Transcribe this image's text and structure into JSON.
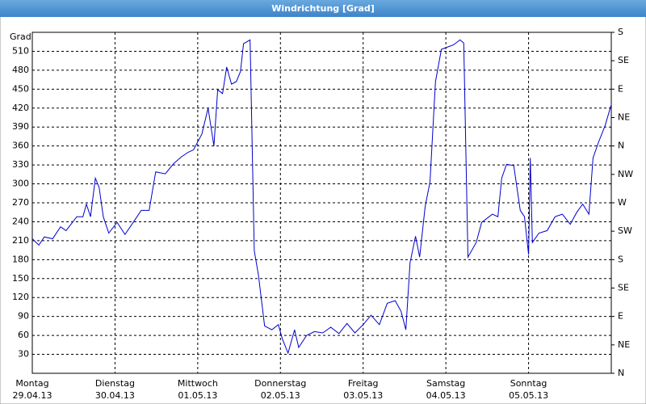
{
  "chart_data": {
    "type": "line",
    "title": "Windrichtung [Grad]",
    "y_label": "Grad",
    "xlim": [
      0,
      168
    ],
    "days": [
      {
        "name": "Montag",
        "date": "29.04.13",
        "value": 0
      },
      {
        "name": "Dienstag",
        "date": "30.04.13",
        "value": 24
      },
      {
        "name": "Mittwoch",
        "date": "01.05.13",
        "value": 48
      },
      {
        "name": "Donnerstag",
        "date": "02.05.13",
        "value": 72
      },
      {
        "name": "Freitag",
        "date": "03.05.13",
        "value": 96
      },
      {
        "name": "Samstag",
        "date": "04.05.13",
        "value": 120
      },
      {
        "name": "Sonntag",
        "date": "05.05.13",
        "value": 144
      }
    ],
    "ylim": [
      0,
      540
    ],
    "yticks": [
      30,
      60,
      90,
      120,
      150,
      180,
      210,
      240,
      270,
      300,
      330,
      360,
      390,
      420,
      450,
      480,
      510
    ],
    "y2ticks": [
      {
        "value": 0,
        "label": "N"
      },
      {
        "value": 45,
        "label": "NE"
      },
      {
        "value": 90,
        "label": "E"
      },
      {
        "value": 135,
        "label": "SE"
      },
      {
        "value": 180,
        "label": "S"
      },
      {
        "value": 225,
        "label": "SW"
      },
      {
        "value": 270,
        "label": "W"
      },
      {
        "value": 315,
        "label": "NW"
      },
      {
        "value": 360,
        "label": "N"
      },
      {
        "value": 405,
        "label": "NE"
      },
      {
        "value": 450,
        "label": "E"
      },
      {
        "value": 495,
        "label": "SE"
      },
      {
        "value": 540,
        "label": "S"
      }
    ],
    "grid": true,
    "color": "#0000cc",
    "x": [
      0,
      1.9,
      3.5,
      5.9,
      8.2,
      9.8,
      12.9,
      14.7,
      15.7,
      16.9,
      18.3,
      19.4,
      20.6,
      22.2,
      24.6,
      26.9,
      29.3,
      31.6,
      33.9,
      35.8,
      38.6,
      41.0,
      43.3,
      45.2,
      46.8,
      49.2,
      51.0,
      52.7,
      53.8,
      55.2,
      56.4,
      57.8,
      59.2,
      60.4,
      61.3,
      63.2,
      64.4,
      65.6,
      67.4,
      69.5,
      71.4,
      72.6,
      74.2,
      76.1,
      77.3,
      79.6,
      81.9,
      84.3,
      86.6,
      89.0,
      91.3,
      93.6,
      96.0,
      98.3,
      100.7,
      103.0,
      105.3,
      107.0,
      108.4,
      109.6,
      111.2,
      112.4,
      114.0,
      115.4,
      117.0,
      118.7,
      120.6,
      122.2,
      124.1,
      125.2,
      126.4,
      128.8,
      130.4,
      133.5,
      135.1,
      136.2,
      137.6,
      139.7,
      141.6,
      142.8,
      144.0,
      144.5,
      145.1,
      147.0,
      149.4,
      151.7,
      153.8,
      156.1,
      158.0,
      159.7,
      161.5,
      162.7,
      164.3,
      166.2,
      167.9
    ],
    "values": [
      213,
      203,
      216,
      213,
      232,
      226,
      248,
      248,
      268,
      248,
      309,
      294,
      248,
      222,
      239,
      220,
      239,
      258,
      258,
      319,
      316,
      332,
      343,
      350,
      354,
      379,
      420,
      360,
      449,
      443,
      485,
      458,
      462,
      478,
      522,
      528,
      194,
      156,
      75,
      69,
      77,
      54,
      32,
      69,
      41,
      60,
      66,
      64,
      73,
      63,
      79,
      64,
      77,
      92,
      77,
      111,
      115,
      98,
      69,
      175,
      217,
      184,
      264,
      303,
      462,
      513,
      517,
      520,
      528,
      523,
      184,
      207,
      239,
      252,
      248,
      309,
      331,
      329,
      258,
      248,
      188,
      341,
      207,
      222,
      226,
      248,
      252,
      236,
      255,
      268,
      252,
      341,
      366,
      392,
      424
    ]
  }
}
